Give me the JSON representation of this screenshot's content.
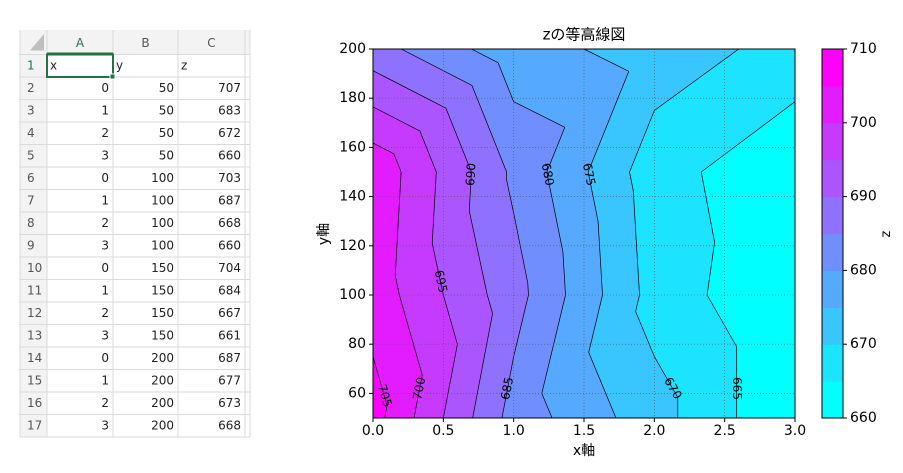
{
  "spreadsheet": {
    "column_headers": [
      "A",
      "B",
      "C"
    ],
    "row_numbers": [
      1,
      2,
      3,
      4,
      5,
      6,
      7,
      8,
      9,
      10,
      11,
      12,
      13,
      14,
      15,
      16,
      17
    ],
    "header_row": [
      "x",
      "y",
      "z"
    ]
  },
  "chart_data": {
    "type": "contourf",
    "title": "zの等高線図",
    "x_label": "x軸",
    "y_label": "y軸",
    "x": [
      0,
      1,
      2,
      3,
      0,
      1,
      2,
      3,
      0,
      1,
      2,
      3,
      0,
      1,
      2,
      3
    ],
    "y": [
      50,
      50,
      50,
      50,
      100,
      100,
      100,
      100,
      150,
      150,
      150,
      150,
      200,
      200,
      200,
      200
    ],
    "z": [
      707,
      683,
      672,
      660,
      703,
      687,
      668,
      660,
      704,
      684,
      667,
      661,
      687,
      677,
      673,
      668
    ],
    "levels": [
      660,
      665,
      670,
      675,
      680,
      685,
      690,
      695,
      700,
      705,
      710
    ],
    "colormap": "cool",
    "line_color": "#000000",
    "xlim": [
      0,
      3
    ],
    "ylim": [
      50,
      200
    ],
    "xticks": [
      {
        "value": 0,
        "label": "0.0"
      },
      {
        "value": 0.5,
        "label": "0.5"
      },
      {
        "value": 1,
        "label": "1.0"
      },
      {
        "value": 1.5,
        "label": "1.5"
      },
      {
        "value": 2,
        "label": "2.0"
      },
      {
        "value": 2.5,
        "label": "2.5"
      },
      {
        "value": 3,
        "label": "3.0"
      }
    ],
    "yticks": [
      60,
      80,
      100,
      120,
      140,
      160,
      180,
      200
    ],
    "grid": true,
    "colorbar": {
      "label": "z",
      "ticks": [
        660,
        670,
        680,
        690,
        700,
        710
      ]
    }
  }
}
